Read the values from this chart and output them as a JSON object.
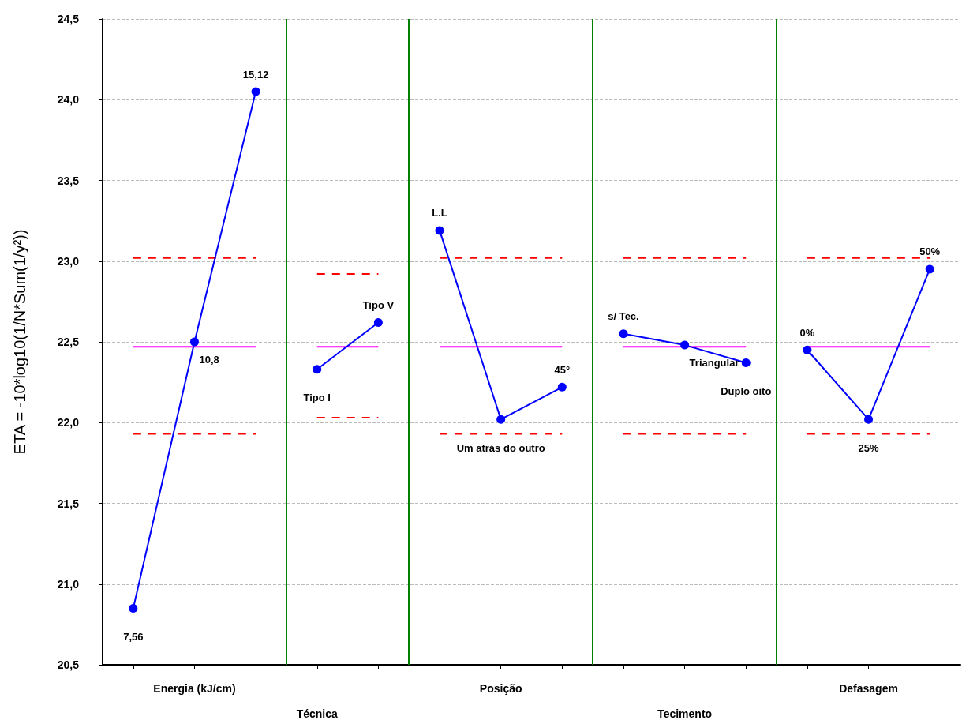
{
  "chart_data": {
    "type": "line",
    "ylabel": "ETA = -10*log10(1/N*Sum(1/y²))",
    "categories": [
      null,
      "Energia (kJ/cm)",
      null,
      "Técnica",
      null,
      null,
      "Posição",
      null,
      null,
      "Tecimento",
      null,
      null,
      "Defasagem",
      null
    ],
    "ylim": [
      20.5,
      24.5
    ],
    "yticks": [
      {
        "value": 20.5,
        "label": "20,5"
      },
      {
        "value": 21,
        "label": "21,0"
      },
      {
        "value": 21.5,
        "label": "21,5"
      },
      {
        "value": 22,
        "label": "22,0"
      },
      {
        "value": 22.5,
        "label": "22,5"
      },
      {
        "value": 23,
        "label": "23,0"
      },
      {
        "value": 23.5,
        "label": "23,5"
      },
      {
        "value": 24,
        "label": "24,0"
      },
      {
        "value": 24.5,
        "label": "24,5"
      }
    ],
    "grid": "y",
    "marker": "circle",
    "line_style": "solid",
    "series": [
      {
        "color": "#0000ff",
        "values": [
          20.85,
          22.5,
          24.05,
          null,
          null,
          null,
          null,
          null,
          null,
          null,
          null,
          null,
          null,
          null
        ]
      },
      {
        "color": "#0000ff",
        "values": [
          null,
          null,
          null,
          22.33,
          22.62,
          null,
          null,
          null,
          null,
          null,
          null,
          null,
          null,
          null
        ]
      },
      {
        "color": "#0000ff",
        "values": [
          null,
          null,
          null,
          null,
          null,
          23.19,
          22.02,
          22.22,
          null,
          null,
          null,
          null,
          null,
          null
        ]
      },
      {
        "color": "#0000ff",
        "values": [
          null,
          null,
          null,
          null,
          null,
          null,
          null,
          null,
          22.55,
          22.48,
          22.37,
          null,
          null,
          null
        ]
      },
      {
        "color": "#0000ff",
        "values": [
          null,
          null,
          null,
          null,
          null,
          null,
          null,
          null,
          null,
          null,
          null,
          22.45,
          22.02,
          22.95
        ]
      },
      {
        "color": "#ff00ff",
        "marker": "none",
        "values": [
          22.47,
          22.47,
          22.47,
          null,
          null,
          null,
          null,
          null,
          null,
          null,
          null,
          null,
          null,
          null
        ]
      },
      {
        "color": "#ff00ff",
        "marker": "none",
        "values": [
          null,
          null,
          null,
          22.47,
          22.47,
          null,
          null,
          null,
          null,
          null,
          null,
          null,
          null,
          null
        ]
      },
      {
        "color": "#ff00ff",
        "marker": "none",
        "values": [
          null,
          null,
          null,
          null,
          null,
          22.47,
          22.47,
          22.47,
          null,
          null,
          null,
          null,
          null,
          null
        ]
      },
      {
        "color": "#ff00ff",
        "marker": "none",
        "values": [
          null,
          null,
          null,
          null,
          null,
          null,
          null,
          null,
          22.47,
          22.47,
          22.47,
          null,
          null,
          null
        ]
      },
      {
        "color": "#ff00ff",
        "marker": "none",
        "values": [
          null,
          null,
          null,
          null,
          null,
          null,
          null,
          null,
          null,
          null,
          null,
          22.47,
          22.47,
          22.47
        ]
      },
      {
        "color": "#ff0000",
        "marker": "none",
        "line_style": "dashed",
        "values": [
          23.02,
          23.02,
          23.02,
          null,
          null,
          null,
          null,
          null,
          null,
          null,
          null,
          null,
          null,
          null
        ]
      },
      {
        "color": "#ff0000",
        "marker": "none",
        "line_style": "dashed",
        "values": [
          21.93,
          21.93,
          21.93,
          null,
          null,
          null,
          null,
          null,
          null,
          null,
          null,
          null,
          null,
          null
        ]
      },
      {
        "color": "#ff0000",
        "marker": "none",
        "line_style": "dashed",
        "values": [
          null,
          null,
          null,
          22.92,
          22.92,
          null,
          null,
          null,
          null,
          null,
          null,
          null,
          null,
          null
        ]
      },
      {
        "color": "#ff0000",
        "marker": "none",
        "line_style": "dashed",
        "values": [
          null,
          null,
          null,
          22.03,
          22.03,
          null,
          null,
          null,
          null,
          null,
          null,
          null,
          null,
          null
        ]
      },
      {
        "color": "#ff0000",
        "marker": "none",
        "line_style": "dashed",
        "values": [
          null,
          null,
          null,
          null,
          null,
          23.02,
          23.02,
          23.02,
          null,
          null,
          null,
          null,
          null,
          null
        ]
      },
      {
        "color": "#ff0000",
        "marker": "none",
        "line_style": "dashed",
        "values": [
          null,
          null,
          null,
          null,
          null,
          21.93,
          21.93,
          21.93,
          null,
          null,
          null,
          null,
          null,
          null
        ]
      },
      {
        "color": "#ff0000",
        "marker": "none",
        "line_style": "dashed",
        "values": [
          null,
          null,
          null,
          null,
          null,
          null,
          null,
          null,
          23.02,
          23.02,
          23.02,
          null,
          null,
          null
        ]
      },
      {
        "color": "#ff0000",
        "marker": "none",
        "line_style": "dashed",
        "values": [
          null,
          null,
          null,
          null,
          null,
          null,
          null,
          null,
          21.93,
          21.93,
          21.93,
          null,
          null,
          null
        ]
      },
      {
        "color": "#ff0000",
        "marker": "none",
        "line_style": "dashed",
        "values": [
          null,
          null,
          null,
          null,
          null,
          null,
          null,
          null,
          null,
          null,
          null,
          23.02,
          23.02,
          23.02
        ]
      },
      {
        "color": "#ff0000",
        "marker": "none",
        "line_style": "dashed",
        "values": [
          null,
          null,
          null,
          null,
          null,
          null,
          null,
          null,
          null,
          null,
          null,
          21.93,
          21.93,
          21.93
        ]
      }
    ],
    "annotations": [
      "7,56",
      "10,8",
      "15,12",
      "Tipo I",
      "Tipo V",
      "L.L",
      "Um atrás do outro",
      "45°",
      "s/ Tec.",
      "Triangular",
      "Duplo oito",
      "0%",
      "25%",
      "50%"
    ]
  }
}
